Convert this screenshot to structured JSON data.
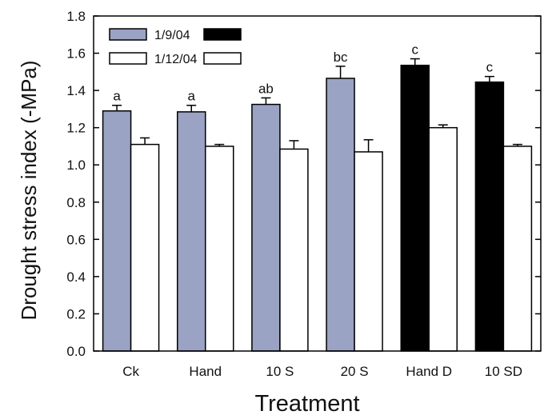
{
  "chart_data": {
    "type": "bar",
    "title": "",
    "xlabel": "Treatment",
    "ylabel": "Drought stress index (-MPa)",
    "ylim": [
      0,
      1.8
    ],
    "yticks": [
      "0.0",
      "0.2",
      "0.4",
      "0.6",
      "0.8",
      "1.0",
      "1.2",
      "1.4",
      "1.6",
      "1.8"
    ],
    "categories": [
      "Ck",
      "Hand",
      "10 S",
      "20 S",
      "Hand D",
      "10 SD"
    ],
    "series": [
      {
        "name": "1/9/04",
        "values": [
          1.29,
          1.285,
          1.325,
          1.465,
          1.535,
          1.445
        ],
        "errors": [
          0.03,
          0.035,
          0.035,
          0.065,
          0.035,
          0.03
        ],
        "fills": [
          "#9aa3c4",
          "#9aa3c4",
          "#9aa3c4",
          "#9aa3c4",
          "#000000",
          "#000000"
        ]
      },
      {
        "name": "1/12/04",
        "values": [
          1.11,
          1.1,
          1.085,
          1.07,
          1.2,
          1.1
        ],
        "errors": [
          0.035,
          0.01,
          0.045,
          0.065,
          0.015,
          0.01
        ],
        "fills": [
          "#ffffff",
          "#ffffff",
          "#ffffff",
          "#ffffff",
          "#ffffff",
          "#ffffff"
        ]
      }
    ],
    "significance_labels": [
      "a",
      "a",
      "ab",
      "bc",
      "c",
      "c"
    ],
    "legend": {
      "placement": "top-left",
      "entries": [
        {
          "label": "1/9/04",
          "swatches": [
            "#9aa3c4",
            "#000000"
          ]
        },
        {
          "label": "1/12/04",
          "swatches": [
            "#ffffff",
            "#ffffff"
          ]
        }
      ]
    },
    "colors": {
      "gray_fill": "#9aa3c4",
      "dark_fill": "#000000",
      "open_fill": "#ffffff",
      "outline": "#000000"
    },
    "grid": false
  }
}
